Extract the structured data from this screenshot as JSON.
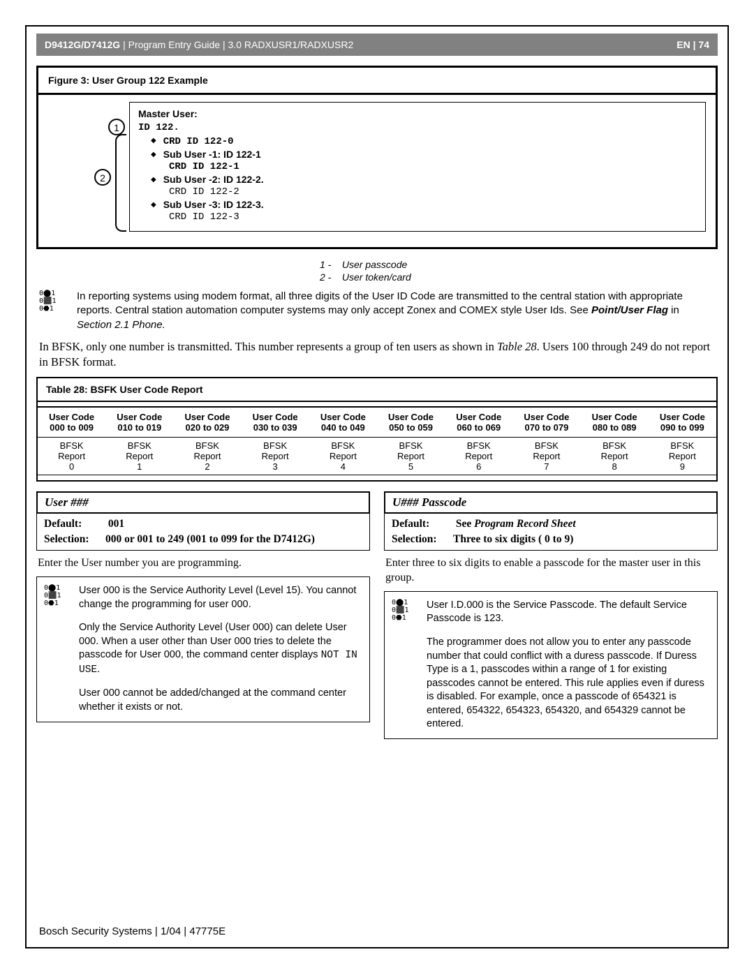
{
  "header": {
    "model": "D9412G/D7412G",
    "pipe": "|",
    "guide": "Program Entry Guide",
    "section": "3.0  RADXUSR1/RADXUSR2",
    "lang": "EN",
    "page": "74"
  },
  "figure": {
    "title": "Figure 3: User Group 122 Example",
    "master_label": "Master User:",
    "id_line": "ID 122.",
    "crd0": "CRD ID 122-0",
    "sub1_b": "Sub User -1:  ID 122-1",
    "sub1_c": "CRD ID 122-1",
    "sub2_b": "Sub User -2:  ID 122-2.",
    "sub2_c": "CRD ID 122-2",
    "sub3_b": "Sub User -3:  ID 122-3.",
    "sub3_c": "CRD ID 122-3",
    "call1": "1",
    "call2": "2"
  },
  "captions": {
    "c1_n": "1 -",
    "c1_t": "User passcode",
    "c2_n": "2 -",
    "c2_t": "User token/card"
  },
  "note1": {
    "text_a": "In reporting systems using modem format, all three digits of the User ID Code are transmitted to the central station with appropriate reports. Central station automation computer systems may only accept Zonex and COMEX style User Ids. See ",
    "bi": "Point/User Flag",
    "mid": " in ",
    "it": "Section 2.1 Phone.",
    "end": ""
  },
  "body1": {
    "a": "In BFSK, only one number is transmitted. This number represents a group of ten users as shown in ",
    "it": "Table 28",
    "b": ". Users 100 through 249 do not report in BFSK format."
  },
  "table28": {
    "title": "Table 28: BSFK User Code Report",
    "headers": [
      [
        "User Code",
        "000 to 009"
      ],
      [
        "User Code",
        "010 to 019"
      ],
      [
        "User Code",
        "020 to 029"
      ],
      [
        "User Code",
        "030 to 039"
      ],
      [
        "User Code",
        "040 to 049"
      ],
      [
        "User Code",
        "050 to 059"
      ],
      [
        "User Code",
        "060 to 069"
      ],
      [
        "User Code",
        "070 to 079"
      ],
      [
        "User Code",
        "080 to 089"
      ],
      [
        "User Code",
        "090 to 099"
      ]
    ],
    "row_label": "BFSK\nReport",
    "vals": [
      "0",
      "1",
      "2",
      "3",
      "4",
      "5",
      "6",
      "7",
      "8",
      "9"
    ]
  },
  "left": {
    "title": "User ###",
    "def_label": "Default:",
    "def_val": "001",
    "sel_label": "Selection:",
    "sel_val": "000 or 001 to 249 (001 to 099 for the D7412G)",
    "body": "Enter the User number you are programming.",
    "info_p1a": "User 000 is the Service Authority Level (Level 15). You cannot change the programming for user 000.",
    "info_p2a": "Only the Service Authority Level (User 000) can delete User 000. When a user other than User 000 tries to delete the passcode for User 000, the command center displays ",
    "info_p2_code": "NOT IN USE",
    "info_p2b": ".",
    "info_p3": "User 000 cannot be added/changed at the command center whether it exists or not."
  },
  "right": {
    "title": "U### Passcode",
    "def_label": "Default:",
    "def_val_a": "See ",
    "def_val_it": "Program Record Sheet",
    "sel_label": "Selection:",
    "sel_val": "Three to six digits ( 0 to 9)",
    "body": "Enter three to six digits to enable a passcode for the master user in this group.",
    "info_p1": "User I.D.000 is the Service Passcode. The default Service Passcode is 123.",
    "info_p2": "The programmer does not allow you to enter any passcode number that could conflict with a duress passcode. If Duress Type is a 1, passcodes within a range of 1 for existing passcodes cannot be entered. This rule applies even if duress is disabled. For example, once a passcode of 654321 is entered, 654322, 654323, 654320, and 654329 cannot be entered."
  },
  "footer": {
    "text": "Bosch Security Systems | 1/04 | 47775E"
  },
  "icon_text": "0⬤1\n0⬛1\n0⬣1"
}
